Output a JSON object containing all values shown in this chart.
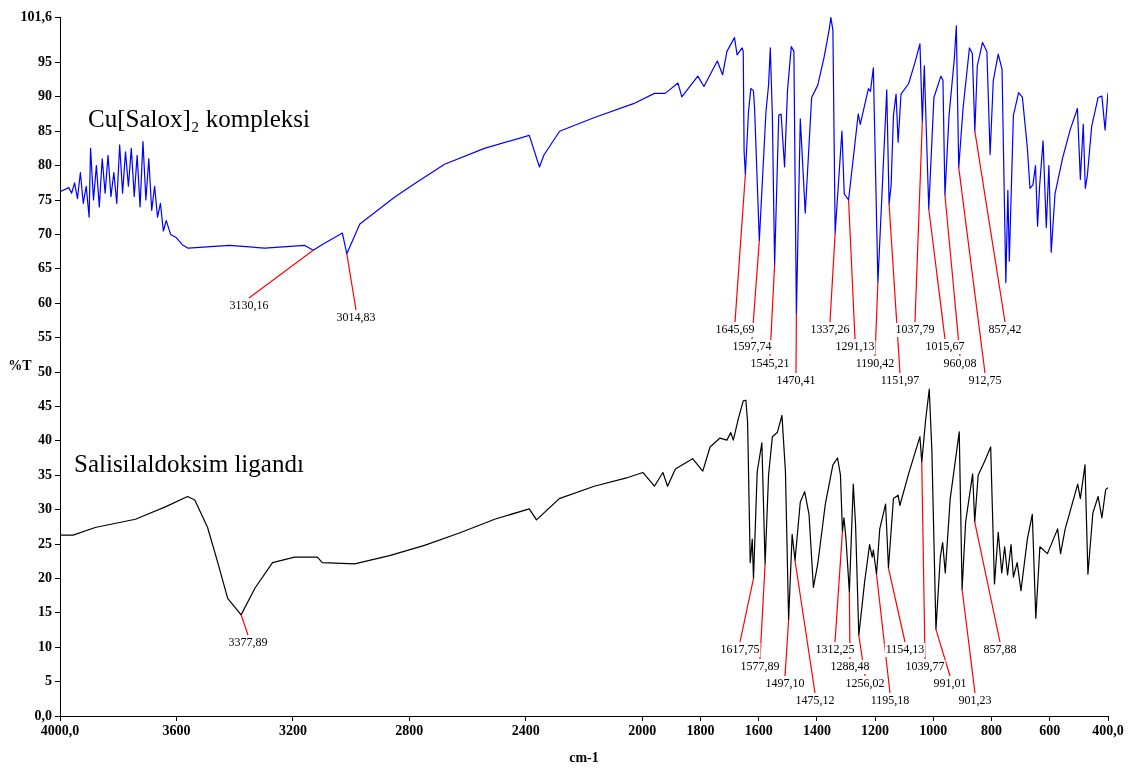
{
  "chart_data": {
    "type": "line",
    "xlabel": "cm-1",
    "ylabel": "%T",
    "xlim": [
      4000,
      400
    ],
    "ylim": [
      0,
      101.6
    ],
    "xticks": [
      {
        "value": 4000,
        "label": "4000,0"
      },
      3600,
      3200,
      2800,
      2400,
      2000,
      1800,
      1600,
      1400,
      1200,
      1000,
      800,
      600,
      {
        "value": 400,
        "label": "400,0"
      }
    ],
    "yticks": [
      {
        "value": 0,
        "label": "0,0"
      },
      5,
      10,
      15,
      20,
      25,
      30,
      35,
      40,
      45,
      50,
      55,
      60,
      65,
      70,
      75,
      80,
      85,
      90,
      95,
      {
        "value": 101.6,
        "label": "101,6"
      }
    ],
    "series": [
      {
        "name": "Cu[Salox]₂ kompleksi",
        "color": "#0000ff",
        "x": [
          4000,
          3985,
          3970,
          3960,
          3950,
          3940,
          3930,
          3920,
          3910,
          3900,
          3895,
          3885,
          3875,
          3865,
          3855,
          3845,
          3835,
          3825,
          3815,
          3805,
          3795,
          3785,
          3775,
          3765,
          3755,
          3745,
          3735,
          3725,
          3715,
          3705,
          3695,
          3685,
          3675,
          3665,
          3655,
          3645,
          3635,
          3620,
          3600,
          3580,
          3560,
          3418,
          3296,
          3159,
          3130.16,
          3100,
          3030,
          3014.83,
          2970,
          2851,
          2781,
          2679,
          2542,
          2388,
          2353,
          2338,
          2284,
          2164,
          2030,
          1958,
          1921,
          1877,
          1864,
          1809,
          1788,
          1742,
          1724,
          1709,
          1683,
          1674,
          1657,
          1653,
          1650,
          1645.69,
          1635,
          1627,
          1618,
          1614,
          1597.74,
          1575,
          1566,
          1560,
          1553,
          1545.21,
          1531,
          1523,
          1511,
          1501,
          1488,
          1479,
          1470.41,
          1457,
          1440,
          1418,
          1397,
          1375,
          1358,
          1352,
          1345,
          1337.26,
          1314,
          1306,
          1291.13,
          1258,
          1251,
          1223,
          1216,
          1206,
          1190.42,
          1160,
          1151.97,
          1145,
          1137,
          1128,
          1121,
          1111,
          1085,
          1063,
          1046,
          1037.79,
          1031,
          1015.67,
          998,
          974,
          967,
          960.08,
          946,
          928,
          921,
          912.75,
          898,
          876,
          866,
          857.42,
          849,
          831,
          816,
          805,
          794,
          777,
          764,
          751,
          744,
          739,
          725,
          707,
          694,
          677,
          668,
          658,
          649,
          642,
          635,
          623,
          612,
          603,
          595,
          582,
          556,
          530,
          505,
          495,
          485,
          478,
          471,
          456,
          434,
          421,
          410,
          400
        ],
        "values": [
          76.2,
          76.5,
          76.8,
          76,
          77.5,
          75.2,
          79,
          74.5,
          77,
          72.5,
          82.5,
          75,
          80,
          74,
          81,
          76,
          81.5,
          75.5,
          79,
          74.5,
          83,
          76,
          82,
          77,
          82.5,
          75.5,
          81.5,
          74,
          83.5,
          75,
          81,
          73.5,
          77,
          72.5,
          74.5,
          70.5,
          72,
          70,
          69.5,
          68.5,
          68,
          68.4,
          68,
          68.4,
          67.7,
          68.5,
          70.2,
          67.2,
          71.5,
          75.4,
          77.4,
          80.2,
          82.5,
          84.4,
          79.8,
          81.5,
          85,
          87,
          89,
          90.5,
          90.5,
          92,
          90,
          93,
          91.5,
          95.2,
          93.2,
          96.6,
          98.6,
          96.1,
          97.1,
          96.6,
          82.1,
          78.7,
          87.8,
          91.2,
          90.9,
          88.3,
          69.1,
          87.8,
          91.7,
          97.1,
          87.3,
          65.6,
          87.3,
          87.5,
          79.8,
          90.9,
          97.3,
          96.6,
          58.4,
          86.8,
          73.1,
          89.9,
          91.7,
          95.8,
          99.7,
          101.5,
          99.7,
          70.2,
          85,
          75.9,
          75,
          87.5,
          86,
          91.2,
          90.8,
          94.2,
          63,
          91,
          74.4,
          77.2,
          87.3,
          90.4,
          83.4,
          90.4,
          91.9,
          95,
          97.7,
          86.4,
          94.5,
          73.7,
          89.9,
          93,
          92.4,
          75.7,
          87.3,
          95.5,
          100.3,
          79.7,
          88.3,
          97.1,
          96.3,
          85,
          94.5,
          97.9,
          96.6,
          81.6,
          92.4,
          96.2,
          94,
          63,
          76.4,
          66.1,
          87.3,
          90.6,
          89.9,
          82.6,
          76.7,
          77.2,
          80,
          71.2,
          77,
          83.6,
          71,
          80,
          67.4,
          75.9,
          81.1,
          85.2,
          88.3,
          78,
          86,
          76.7,
          78.5,
          85.7,
          89.9,
          90.1,
          85.2,
          90.6
        ]
      },
      {
        "name": "Salisilaldoksim ligandı",
        "color": "#000000",
        "x": [
          4000,
          3955,
          3879,
          3741,
          3638,
          3562,
          3537,
          3493,
          3458,
          3424,
          3377.89,
          3330,
          3270,
          3194,
          3116,
          3099,
          2988,
          2868,
          2748,
          2628,
          2507,
          2388,
          2363,
          2285,
          2165,
          2054,
          1998,
          1958,
          1929,
          1913,
          1886,
          1827,
          1792,
          1767,
          1733,
          1709,
          1696,
          1687,
          1670,
          1653,
          1644,
          1638,
          1629,
          1622,
          1617.75,
          1605,
          1589,
          1577.89,
          1566,
          1553,
          1536,
          1520,
          1508,
          1497.1,
          1485,
          1475.12,
          1457,
          1442,
          1427,
          1412,
          1397,
          1371,
          1345,
          1329,
          1319,
          1312.25,
          1307,
          1300,
          1288.48,
          1275,
          1267,
          1256.02,
          1236,
          1219,
          1210,
          1206,
          1195.18,
          1184,
          1164,
          1154.13,
          1137,
          1121,
          1115,
          1085,
          1046,
          1039.77,
          1026,
          1014,
          1005,
          991.01,
          976,
          968,
          959,
          942,
          911,
          901.23,
          889,
          865,
          857.88,
          846,
          824,
          803,
          790,
          777,
          765,
          755,
          745,
          733,
          725,
          712,
          699,
          677,
          660,
          648,
          634,
          608,
          573,
          563,
          547,
          504,
          495,
          479,
          469,
          452,
          434,
          421,
          408,
          400
        ],
        "values": [
          26.3,
          26.3,
          27.4,
          28.6,
          30.4,
          31.9,
          31.4,
          27.4,
          22.3,
          17.1,
          14.7,
          18.6,
          22.3,
          23.1,
          23.1,
          22.3,
          22.1,
          23.3,
          24.8,
          26.6,
          28.6,
          30.1,
          28.5,
          31.6,
          33.4,
          34.6,
          35.4,
          33.4,
          35.4,
          33.4,
          35.9,
          37.4,
          35.6,
          39.1,
          40.4,
          40.1,
          41.2,
          40.1,
          43.2,
          45.8,
          45.9,
          42.7,
          22.3,
          25.7,
          20,
          35.5,
          39.7,
          22.1,
          35,
          40.6,
          41.2,
          43.7,
          35.5,
          14,
          26.4,
          22.6,
          31.1,
          32.6,
          29.3,
          18.7,
          22.1,
          30.8,
          36.5,
          37.5,
          35,
          26.8,
          28.8,
          25.7,
          18,
          33.7,
          27.7,
          11.7,
          19.5,
          24.9,
          23.1,
          24.1,
          20.6,
          27.2,
          30.8,
          21.5,
          31.6,
          32.1,
          30.6,
          35.2,
          40.6,
          36.9,
          43.2,
          47.5,
          38.6,
          12.6,
          23.1,
          25.2,
          20.8,
          31.6,
          41.3,
          18.4,
          28.2,
          35.2,
          28.2,
          35,
          37,
          39.1,
          19.2,
          26.7,
          20.8,
          24.6,
          20.5,
          24.9,
          20.2,
          22.3,
          18.2,
          25.7,
          29.3,
          14.2,
          24.6,
          23.6,
          27.2,
          23.6,
          27.2,
          33.7,
          31.6,
          36.5,
          20.6,
          29.5,
          31.9,
          28.8,
          32.9,
          33.2
        ]
      }
    ],
    "annotations": [
      {
        "text": "3130,16",
        "x": 3130.16,
        "y": 67.7
      },
      {
        "text": "3014,83",
        "x": 3014.83,
        "y": 67.2
      },
      {
        "text": "1645,69",
        "x": 1645.69,
        "y": 78.7
      },
      {
        "text": "1597,74",
        "x": 1597.74,
        "y": 69.1
      },
      {
        "text": "1545,21",
        "x": 1545.21,
        "y": 65.6
      },
      {
        "text": "1470,41",
        "x": 1470.41,
        "y": 58.4
      },
      {
        "text": "1337,26",
        "x": 1337.26,
        "y": 70.2
      },
      {
        "text": "1291,13",
        "x": 1291.13,
        "y": 75
      },
      {
        "text": "1190,42",
        "x": 1190.42,
        "y": 63
      },
      {
        "text": "1151,97",
        "x": 1151.97,
        "y": 74.4
      },
      {
        "text": "1037,79",
        "x": 1037.79,
        "y": 86.4
      },
      {
        "text": "1015,67",
        "x": 1015.67,
        "y": 73.7
      },
      {
        "text": "960,08",
        "x": 960.08,
        "y": 75.7
      },
      {
        "text": "912,75",
        "x": 912.75,
        "y": 79.7
      },
      {
        "text": "857,42",
        "x": 857.42,
        "y": 85
      },
      {
        "text": "3377,89",
        "x": 3377.89,
        "y": 14.7
      },
      {
        "text": "1617,75",
        "x": 1617.75,
        "y": 20
      },
      {
        "text": "1577,89",
        "x": 1577.89,
        "y": 22.1
      },
      {
        "text": "1497,10",
        "x": 1497.1,
        "y": 14
      },
      {
        "text": "1475,12",
        "x": 1475.12,
        "y": 22.6
      },
      {
        "text": "1312,25",
        "x": 1312.25,
        "y": 26.8
      },
      {
        "text": "1288,48",
        "x": 1288.48,
        "y": 18
      },
      {
        "text": "1256,02",
        "x": 1256.02,
        "y": 11.7
      },
      {
        "text": "1195,18",
        "x": 1195.18,
        "y": 20.6
      },
      {
        "text": "1154,13",
        "x": 1154.13,
        "y": 21.5
      },
      {
        "text": "1039,77",
        "x": 1039.77,
        "y": 36.9
      },
      {
        "text": "991,01",
        "x": 991.01,
        "y": 12.6
      },
      {
        "text": "901,23",
        "x": 901.23,
        "y": 18.4
      },
      {
        "text": "857,88",
        "x": 857.88,
        "y": 28.2
      }
    ]
  }
}
